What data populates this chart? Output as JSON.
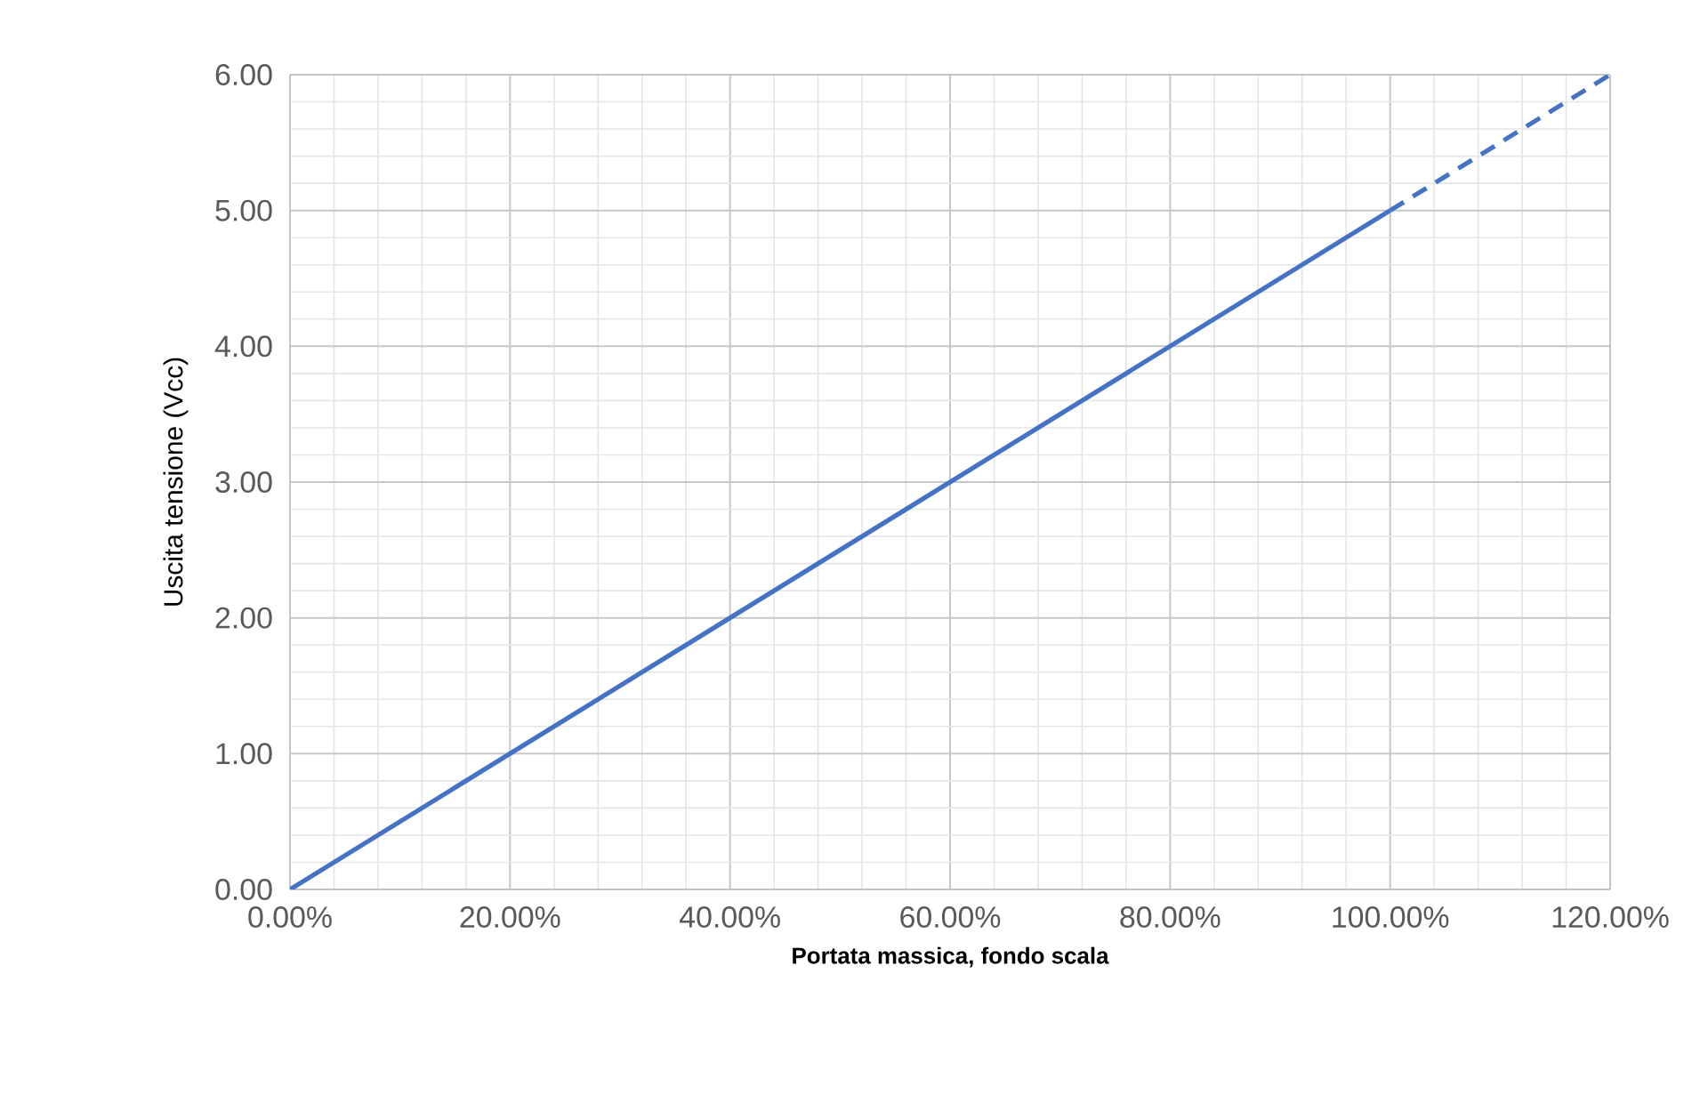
{
  "chart_data": {
    "type": "line",
    "xlabel": "Portata massica, fondo scala",
    "ylabel": "Uscita tensione (Vcc)",
    "series": [
      {
        "x": [
          0,
          100
        ],
        "values": [
          0,
          5
        ],
        "color": "#4472c4",
        "line_style": "solid"
      },
      {
        "x": [
          100,
          120
        ],
        "values": [
          5,
          6
        ],
        "color": "#4472c4",
        "line_style": "dashed"
      }
    ],
    "xlim": [
      0,
      120
    ],
    "ylim": [
      0,
      6
    ],
    "xticks": [
      {
        "value": 0,
        "label": "0.00%"
      },
      {
        "value": 20,
        "label": "20.00%"
      },
      {
        "value": 40,
        "label": "40.00%"
      },
      {
        "value": 60,
        "label": "60.00%"
      },
      {
        "value": 80,
        "label": "80.00%"
      },
      {
        "value": 100,
        "label": "100.00%"
      },
      {
        "value": 120,
        "label": "120.00%"
      }
    ],
    "yticks": [
      {
        "value": 0,
        "label": "0.00"
      },
      {
        "value": 1,
        "label": "1.00"
      },
      {
        "value": 2,
        "label": "2.00"
      },
      {
        "value": 3,
        "label": "3.00"
      },
      {
        "value": 4,
        "label": "4.00"
      },
      {
        "value": 5,
        "label": "5.00"
      },
      {
        "value": 6,
        "label": "6.00"
      }
    ],
    "grid": true,
    "marker": "none"
  }
}
